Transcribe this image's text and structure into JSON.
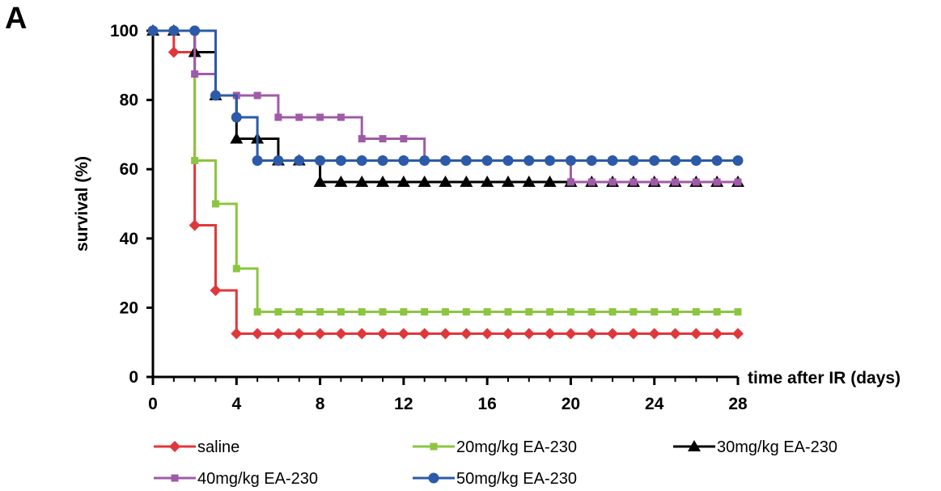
{
  "panel_label": "A",
  "chart_data": {
    "type": "line",
    "step": true,
    "title": "",
    "xlabel": "time after IR (days)",
    "ylabel": "survival (%)",
    "xlim": [
      0,
      28
    ],
    "ylim": [
      0,
      100
    ],
    "xticks": [
      0,
      4,
      8,
      12,
      16,
      20,
      24,
      28
    ],
    "yticks": [
      0,
      20,
      40,
      60,
      80,
      100
    ],
    "grid": false,
    "legend_position": "bottom",
    "series": [
      {
        "name": "saline",
        "color": "#e0373a",
        "marker": "diamond",
        "x": [
          0,
          1,
          2,
          3,
          4,
          5,
          6,
          7,
          8,
          9,
          10,
          11,
          12,
          13,
          14,
          15,
          16,
          17,
          18,
          19,
          20,
          21,
          22,
          23,
          24,
          25,
          26,
          27,
          28
        ],
        "y": [
          100,
          93.8,
          43.8,
          25,
          12.5,
          12.5,
          12.5,
          12.5,
          12.5,
          12.5,
          12.5,
          12.5,
          12.5,
          12.5,
          12.5,
          12.5,
          12.5,
          12.5,
          12.5,
          12.5,
          12.5,
          12.5,
          12.5,
          12.5,
          12.5,
          12.5,
          12.5,
          12.5,
          12.5
        ]
      },
      {
        "name": "20mg/kg EA-230",
        "color": "#8cc540",
        "marker": "square",
        "x": [
          0,
          1,
          2,
          3,
          4,
          5,
          6,
          7,
          8,
          9,
          10,
          11,
          12,
          13,
          14,
          15,
          16,
          17,
          18,
          19,
          20,
          21,
          22,
          23,
          24,
          25,
          26,
          27,
          28
        ],
        "y": [
          100,
          100,
          62.5,
          50,
          31.3,
          18.8,
          18.8,
          18.8,
          18.8,
          18.8,
          18.8,
          18.8,
          18.8,
          18.8,
          18.8,
          18.8,
          18.8,
          18.8,
          18.8,
          18.8,
          18.8,
          18.8,
          18.8,
          18.8,
          18.8,
          18.8,
          18.8,
          18.8,
          18.8
        ]
      },
      {
        "name": "30mg/kg EA-230",
        "color": "#000000",
        "marker": "triangle",
        "x": [
          0,
          1,
          2,
          3,
          4,
          5,
          6,
          7,
          8,
          9,
          10,
          11,
          12,
          13,
          14,
          15,
          16,
          17,
          18,
          19,
          20,
          21,
          22,
          23,
          24,
          25,
          26,
          27,
          28
        ],
        "y": [
          100,
          100,
          93.8,
          81.3,
          68.8,
          68.8,
          62.5,
          62.5,
          56.3,
          56.3,
          56.3,
          56.3,
          56.3,
          56.3,
          56.3,
          56.3,
          56.3,
          56.3,
          56.3,
          56.3,
          56.3,
          56.3,
          56.3,
          56.3,
          56.3,
          56.3,
          56.3,
          56.3,
          56.3
        ]
      },
      {
        "name": "40mg/kg EA-230",
        "color": "#a05ba8",
        "marker": "square",
        "x": [
          0,
          1,
          2,
          3,
          4,
          5,
          6,
          7,
          8,
          9,
          10,
          11,
          12,
          13,
          14,
          15,
          16,
          17,
          18,
          19,
          20,
          21,
          22,
          23,
          24,
          25,
          26,
          27,
          28
        ],
        "y": [
          100,
          100,
          87.5,
          81.3,
          81.3,
          81.3,
          75,
          75,
          75,
          75,
          68.8,
          68.8,
          68.8,
          62.5,
          62.5,
          62.5,
          62.5,
          62.5,
          62.5,
          62.5,
          56.3,
          56.3,
          56.3,
          56.3,
          56.3,
          56.3,
          56.3,
          56.3,
          56.3
        ]
      },
      {
        "name": "50mg/kg EA-230",
        "color": "#2c5aa8",
        "marker": "circle",
        "x": [
          0,
          1,
          2,
          3,
          4,
          5,
          6,
          7,
          8,
          9,
          10,
          11,
          12,
          13,
          14,
          15,
          16,
          17,
          18,
          19,
          20,
          21,
          22,
          23,
          24,
          25,
          26,
          27,
          28
        ],
        "y": [
          100,
          100,
          100,
          81.3,
          75,
          62.5,
          62.5,
          62.5,
          62.5,
          62.5,
          62.5,
          62.5,
          62.5,
          62.5,
          62.5,
          62.5,
          62.5,
          62.5,
          62.5,
          62.5,
          62.5,
          62.5,
          62.5,
          62.5,
          62.5,
          62.5,
          62.5,
          62.5,
          62.5
        ]
      }
    ]
  }
}
